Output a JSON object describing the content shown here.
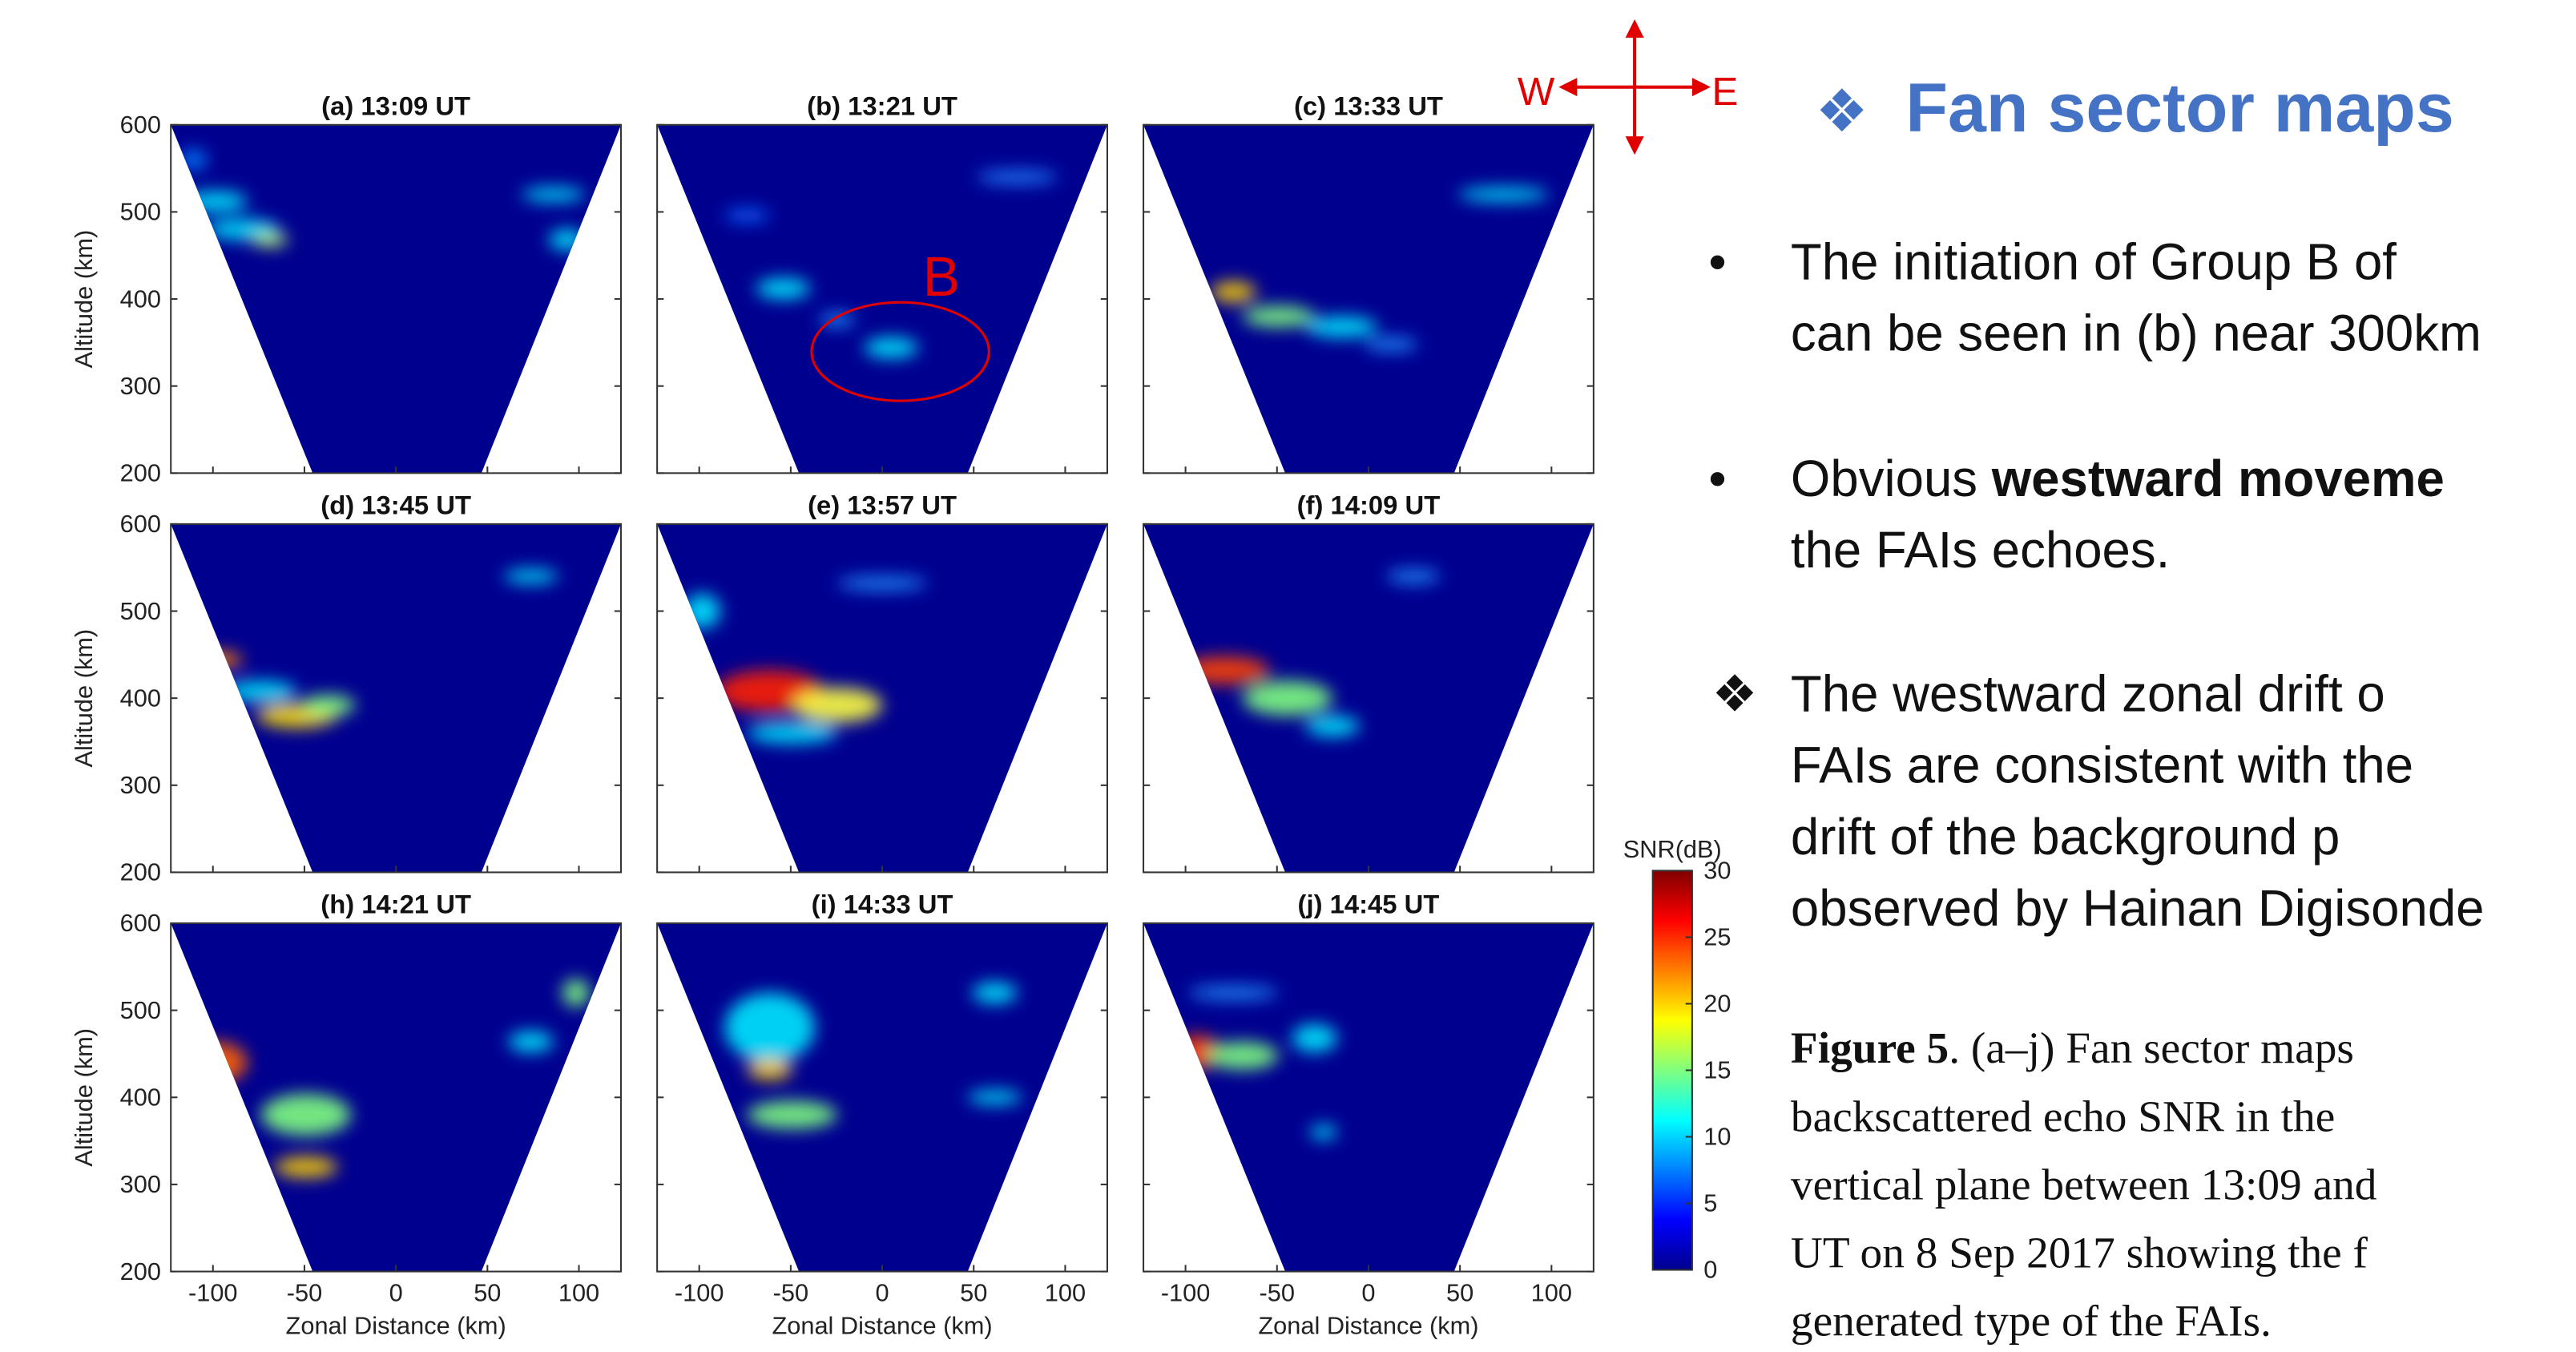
{
  "figure": {
    "panels": [
      {
        "title": "(a) 13:09 UT"
      },
      {
        "title": "(b) 13:21 UT"
      },
      {
        "title": "(c) 13:33 UT"
      },
      {
        "title": "(d) 13:45 UT"
      },
      {
        "title": "(e) 13:57 UT"
      },
      {
        "title": "(f) 14:09 UT"
      },
      {
        "title": "(h) 14:21 UT"
      },
      {
        "title": "(i) 14:33 UT"
      },
      {
        "title": "(j) 14:45 UT"
      }
    ],
    "xlabel": "Zonal Distance (km)",
    "ylabel": "Altitude (km)",
    "xlim": [
      -123,
      123
    ],
    "xticks": [
      -100,
      -50,
      0,
      50,
      100
    ],
    "ylim": [
      200,
      600
    ],
    "yticks": [
      200,
      300,
      400,
      500,
      600
    ],
    "annotation": "B",
    "colorbar": {
      "label": "SNR(dB)",
      "lim": [
        0,
        30
      ],
      "ticks": [
        0,
        5,
        10,
        15,
        20,
        25,
        30
      ]
    }
  },
  "compass": {
    "west": "W",
    "east": "E"
  },
  "slide": {
    "heading": "Fan sector maps",
    "bullets": [
      {
        "marker": "•",
        "lines": [
          [
            {
              "text": "The  initiation  of  Group  B  of"
            }
          ],
          [
            {
              "text": "can be seen in (b)  near 300km"
            }
          ]
        ]
      },
      {
        "marker": "•",
        "lines": [
          [
            {
              "text": "Obvious  "
            },
            {
              "text": "westward  moveme",
              "bold": true
            }
          ],
          [
            {
              "text": "the FAIs echoes."
            }
          ]
        ]
      },
      {
        "marker": "❖",
        "lines": [
          [
            {
              "text": "The  westward  zonal  drift  o"
            }
          ],
          [
            {
              "text": "FAIs are consistent with the"
            }
          ],
          [
            {
              "text": "drift  of  the  background  p"
            }
          ],
          [
            {
              "text": "observed by Hainan Digisonde"
            }
          ]
        ]
      }
    ],
    "caption": [
      [
        {
          "text": "Figure 5",
          "bold": true
        },
        {
          "text": ". (a–j) Fan sector maps"
        }
      ],
      [
        {
          "text": "backscattered  echo  SNR  in  the"
        }
      ],
      [
        {
          "text": "vertical plane between 13:09 and"
        }
      ],
      [
        {
          "text": "UT on 8 Sep 2017 showing the f"
        }
      ],
      [
        {
          "text": "generated type of the FAIs."
        }
      ]
    ]
  }
}
